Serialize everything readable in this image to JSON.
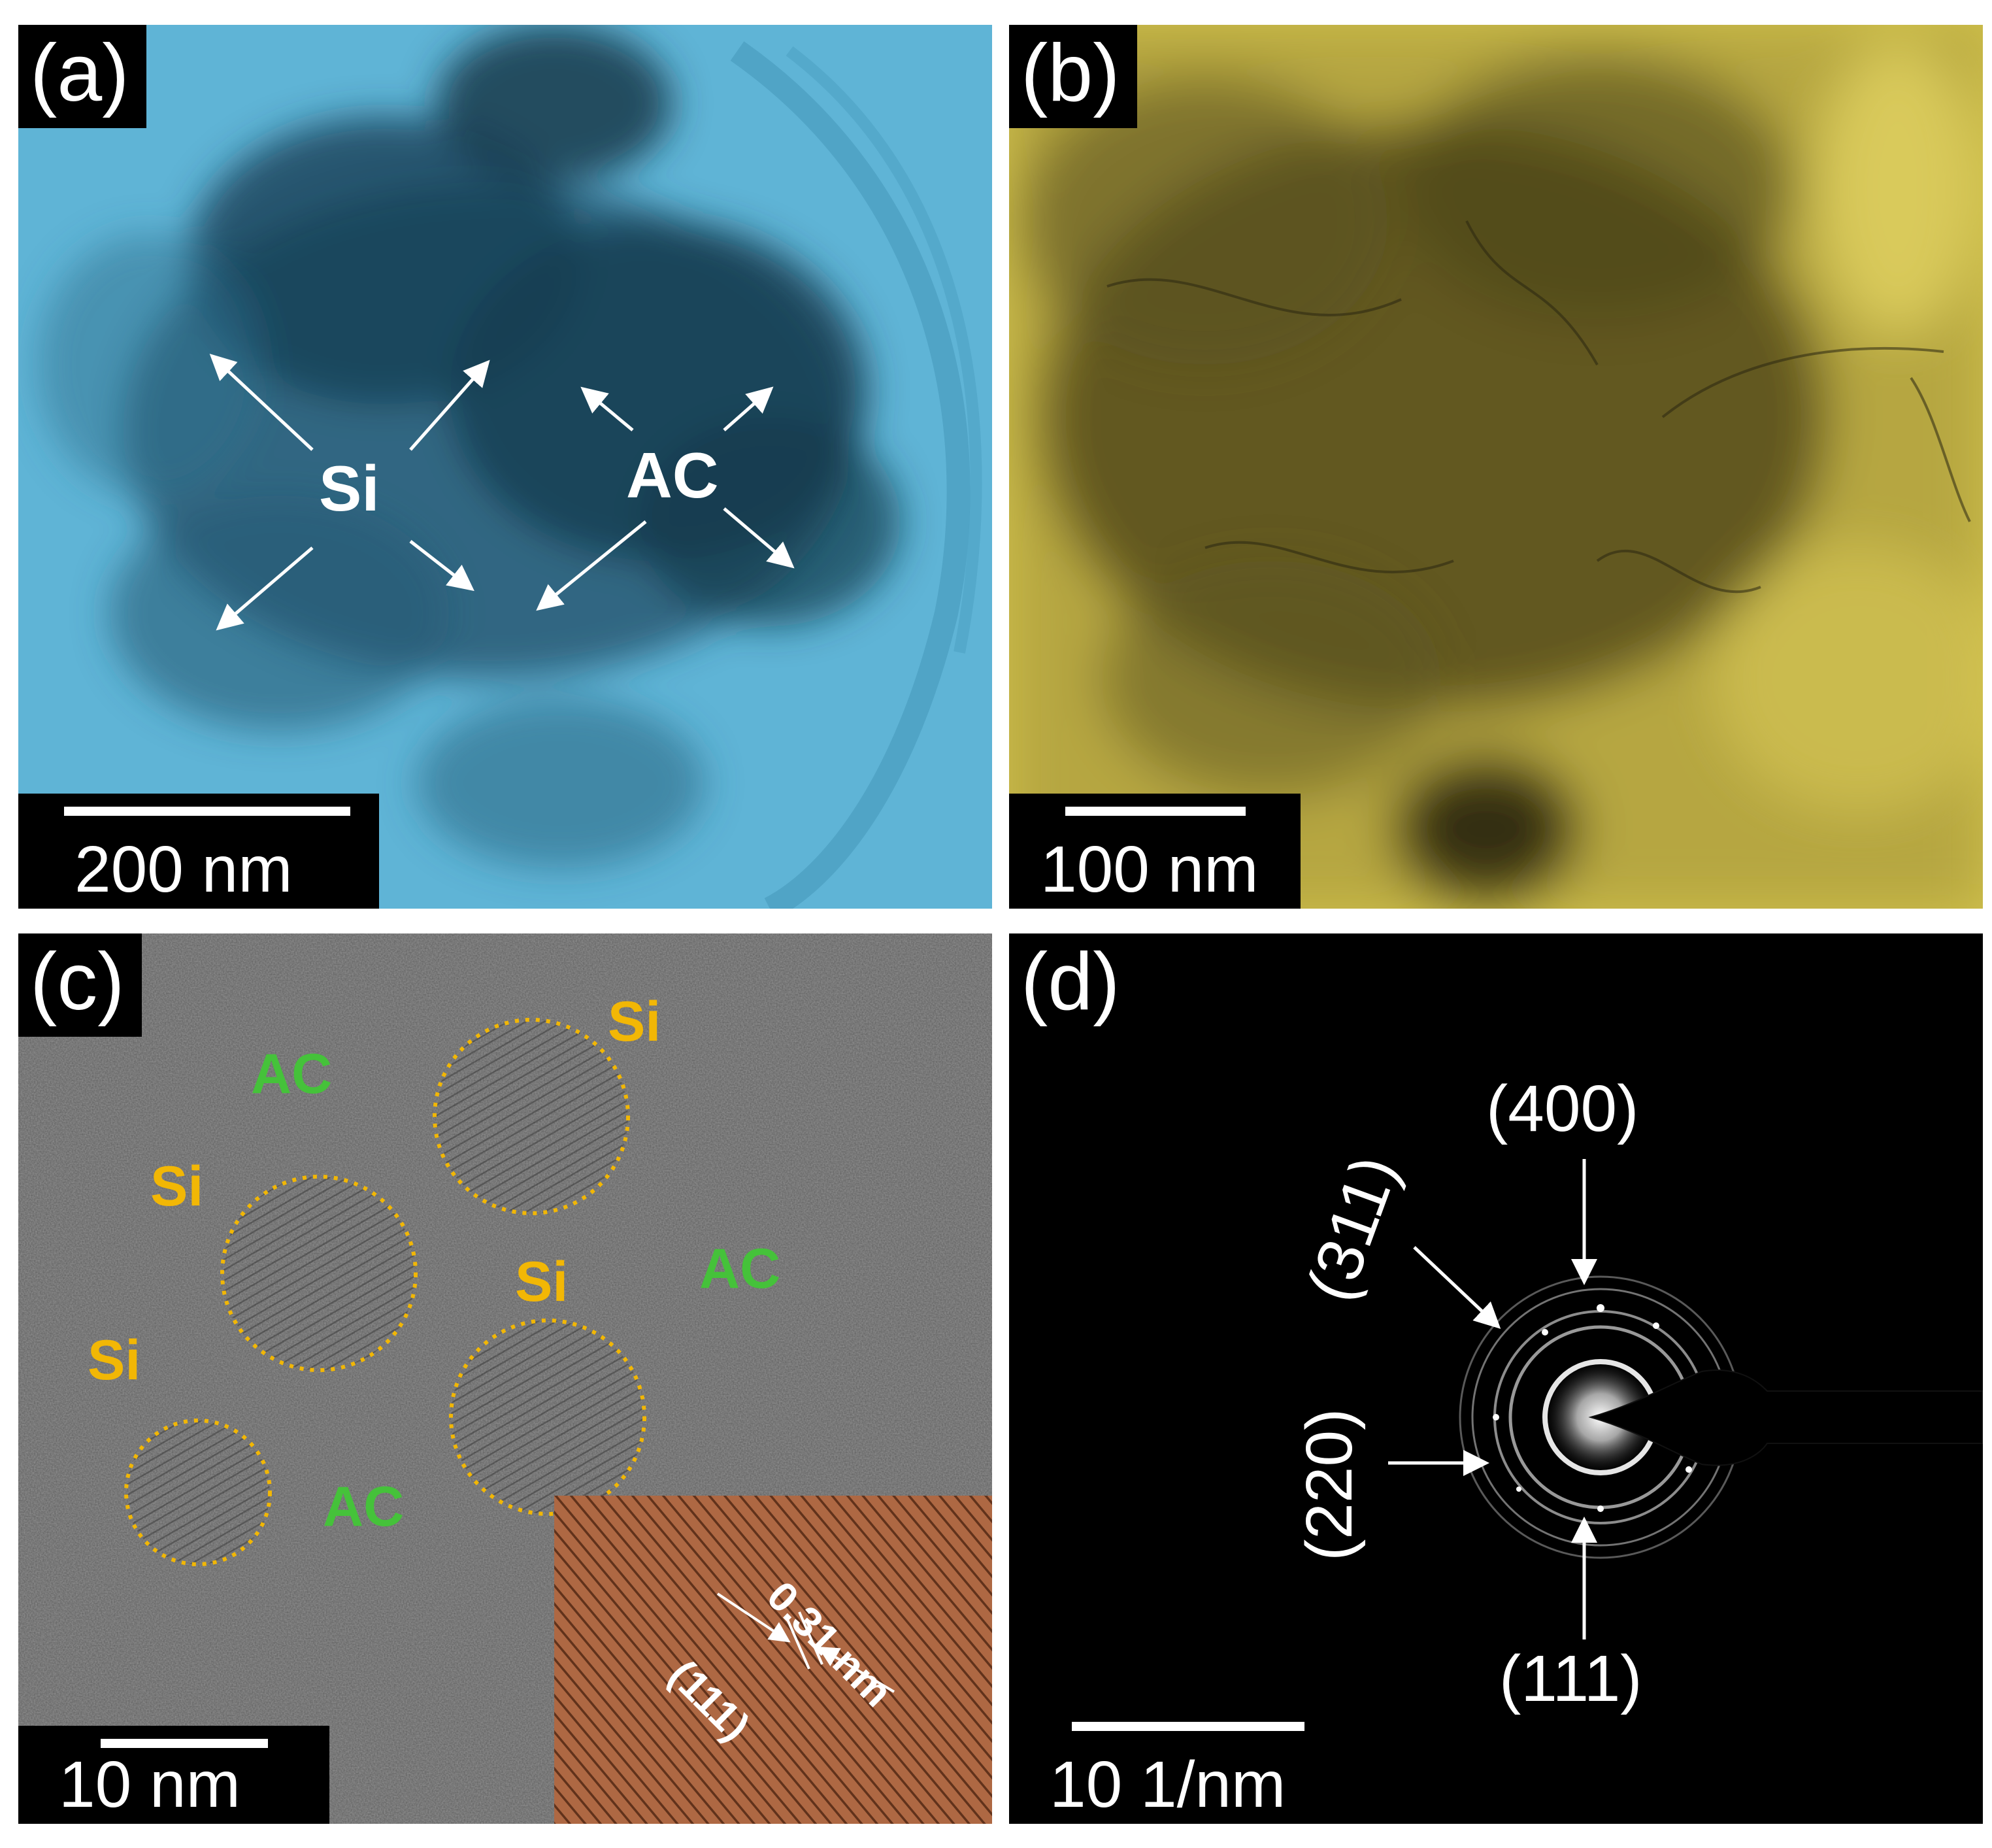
{
  "panels": {
    "a": {
      "tag": "(a)",
      "scale_bar": "200 nm",
      "labels": {
        "si": "Si",
        "ac": "AC"
      }
    },
    "b": {
      "tag": "(b)",
      "scale_bar": "100 nm"
    },
    "c": {
      "tag": "(c)",
      "scale_bar": "10 nm",
      "si_labels": [
        "Si",
        "Si",
        "Si",
        "Si"
      ],
      "ac_labels": [
        "AC",
        "AC",
        "AC"
      ],
      "inset": {
        "spacing": "0.31 nm",
        "plane": "(111)"
      }
    },
    "d": {
      "tag": "(d)",
      "scale_bar": "10 1/nm",
      "rings": [
        "(400)",
        "(311)",
        "(220)",
        "(111)"
      ]
    }
  },
  "colors": {
    "panel_a_tint": "#5fb4d6",
    "panel_b_tint": "#cfc04a",
    "si_label": "#f2b705",
    "ac_label": "#45c23a",
    "inset_tint": "#a05a38"
  }
}
